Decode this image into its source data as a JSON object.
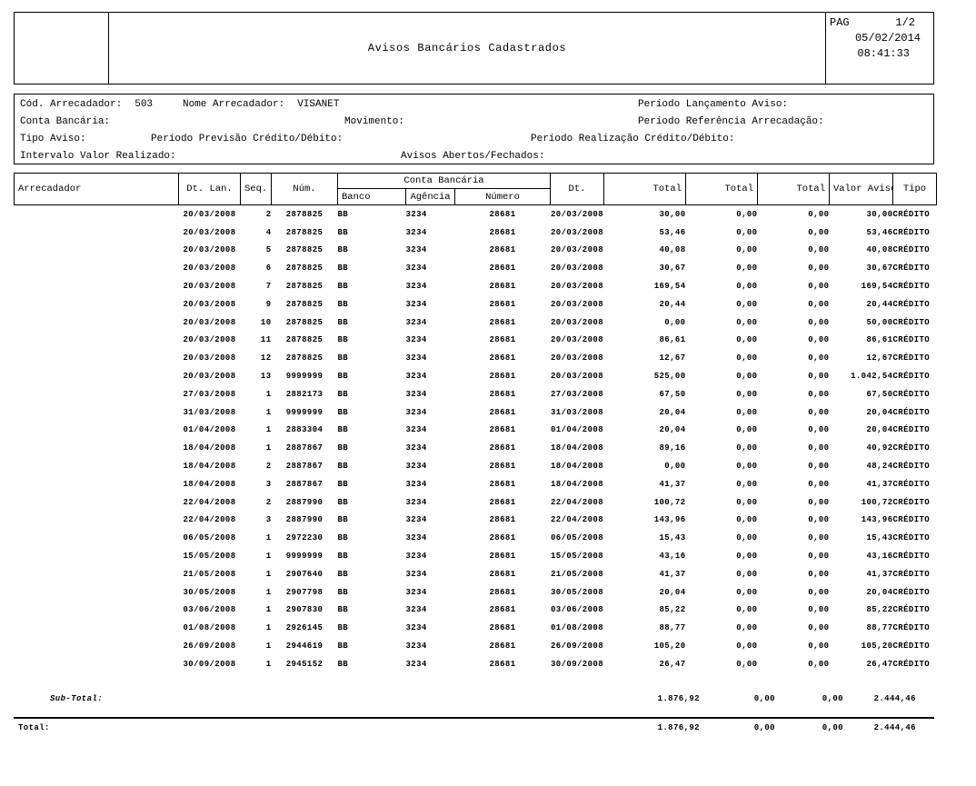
{
  "report": {
    "title": "Avisos Bancários Cadastrados",
    "pag_label": "PAG",
    "page_number": "1/2",
    "date": "05/02/2014",
    "time": "08:41:33"
  },
  "filters": {
    "cod_arrecadador": {
      "label": "Cód. Arrecadador:",
      "value": "503"
    },
    "nome_arrecadador": {
      "label": "Nome Arrecadador:",
      "value": "VISANET"
    },
    "periodo_lancamento": {
      "label": "Período Lançamento Aviso:",
      "value": ""
    },
    "conta_bancaria": {
      "label": "Conta Bancária:",
      "value": ""
    },
    "movimento": {
      "label": "Movimento:",
      "value": ""
    },
    "periodo_referencia": {
      "label": "Período Referência Arrecadação:",
      "value": ""
    },
    "tipo_aviso": {
      "label": "Tipo Aviso:",
      "value": ""
    },
    "periodo_previsao": {
      "label": "Período Previsão Crédito/Débito:",
      "value": ""
    },
    "periodo_realizacao": {
      "label": "Período Realização Crédito/Débito:",
      "value": ""
    },
    "intervalo_valor": {
      "label": "Intervalo Valor Realizado:",
      "value": ""
    },
    "avisos_abertos": {
      "label": "Avisos Abertos/Fechados:",
      "value": ""
    }
  },
  "table": {
    "headers": {
      "arrecadador": "Arrecadador",
      "dt_lan": "Dt. Lan.",
      "seq": "Seq.",
      "num": "Núm.",
      "conta_bancaria_group": "Conta Bancária",
      "banco": "Banco",
      "agencia": "Agência",
      "numero": "Número",
      "dt": "Dt.",
      "total1": "Total",
      "total2": "Total",
      "total3": "Total",
      "valor_aviso": "Valor Aviso",
      "tipo": "Tipo"
    },
    "field_names": [
      "dt-lan",
      "seq",
      "num",
      "banco",
      "agencia",
      "numero",
      "dt",
      "total-1",
      "total-2",
      "total-3",
      "valor-aviso",
      "tipo"
    ],
    "rows": [
      [
        "20/03/2008",
        "2",
        "2878825",
        "BB",
        "3234",
        "28681",
        "20/03/2008",
        "30,00",
        "0,00",
        "0,00",
        "30,00",
        "CRÉDITO"
      ],
      [
        "20/03/2008",
        "4",
        "2878825",
        "BB",
        "3234",
        "28681",
        "20/03/2008",
        "53,46",
        "0,00",
        "0,00",
        "53,46",
        "CRÉDITO"
      ],
      [
        "20/03/2008",
        "5",
        "2878825",
        "BB",
        "3234",
        "28681",
        "20/03/2008",
        "40,08",
        "0,00",
        "0,00",
        "40,08",
        "CRÉDITO"
      ],
      [
        "20/03/2008",
        "6",
        "2878825",
        "BB",
        "3234",
        "28681",
        "20/03/2008",
        "30,67",
        "0,00",
        "0,00",
        "30,67",
        "CRÉDITO"
      ],
      [
        "20/03/2008",
        "7",
        "2878825",
        "BB",
        "3234",
        "28681",
        "20/03/2008",
        "169,54",
        "0,00",
        "0,00",
        "169,54",
        "CRÉDITO"
      ],
      [
        "20/03/2008",
        "9",
        "2878825",
        "BB",
        "3234",
        "28681",
        "20/03/2008",
        "20,44",
        "0,00",
        "0,00",
        "20,44",
        "CRÉDITO"
      ],
      [
        "20/03/2008",
        "10",
        "2878825",
        "BB",
        "3234",
        "28681",
        "20/03/2008",
        "0,00",
        "0,00",
        "0,00",
        "50,00",
        "CRÉDITO"
      ],
      [
        "20/03/2008",
        "11",
        "2878825",
        "BB",
        "3234",
        "28681",
        "20/03/2008",
        "86,61",
        "0,00",
        "0,00",
        "86,61",
        "CRÉDITO"
      ],
      [
        "20/03/2008",
        "12",
        "2878825",
        "BB",
        "3234",
        "28681",
        "20/03/2008",
        "12,67",
        "0,00",
        "0,00",
        "12,67",
        "CRÉDITO"
      ],
      [
        "20/03/2008",
        "13",
        "9999999",
        "BB",
        "3234",
        "28681",
        "20/03/2008",
        "525,00",
        "0,00",
        "0,00",
        "1.042,54",
        "CRÉDITO"
      ],
      [
        "27/03/2008",
        "1",
        "2882173",
        "BB",
        "3234",
        "28681",
        "27/03/2008",
        "67,50",
        "0,00",
        "0,00",
        "67,50",
        "CRÉDITO"
      ],
      [
        "31/03/2008",
        "1",
        "9999999",
        "BB",
        "3234",
        "28681",
        "31/03/2008",
        "20,04",
        "0,00",
        "0,00",
        "20,04",
        "CRÉDITO"
      ],
      [
        "01/04/2008",
        "1",
        "2883304",
        "BB",
        "3234",
        "28681",
        "01/04/2008",
        "20,04",
        "0,00",
        "0,00",
        "20,04",
        "CRÉDITO"
      ],
      [
        "18/04/2008",
        "1",
        "2887867",
        "BB",
        "3234",
        "28681",
        "18/04/2008",
        "89,16",
        "0,00",
        "0,00",
        "40,92",
        "CRÉDITO"
      ],
      [
        "18/04/2008",
        "2",
        "2887867",
        "BB",
        "3234",
        "28681",
        "18/04/2008",
        "0,00",
        "0,00",
        "0,00",
        "48,24",
        "CRÉDITO"
      ],
      [
        "18/04/2008",
        "3",
        "2887867",
        "BB",
        "3234",
        "28681",
        "18/04/2008",
        "41,37",
        "0,00",
        "0,00",
        "41,37",
        "CRÉDITO"
      ],
      [
        "22/04/2008",
        "2",
        "2887990",
        "BB",
        "3234",
        "28681",
        "22/04/2008",
        "100,72",
        "0,00",
        "0,00",
        "100,72",
        "CRÉDITO"
      ],
      [
        "22/04/2008",
        "3",
        "2887990",
        "BB",
        "3234",
        "28681",
        "22/04/2008",
        "143,96",
        "0,00",
        "0,00",
        "143,96",
        "CRÉDITO"
      ],
      [
        "06/05/2008",
        "1",
        "2972230",
        "BB",
        "3234",
        "28681",
        "06/05/2008",
        "15,43",
        "0,00",
        "0,00",
        "15,43",
        "CRÉDITO"
      ],
      [
        "15/05/2008",
        "1",
        "9999999",
        "BB",
        "3234",
        "28681",
        "15/05/2008",
        "43,16",
        "0,00",
        "0,00",
        "43,16",
        "CRÉDITO"
      ],
      [
        "21/05/2008",
        "1",
        "2907640",
        "BB",
        "3234",
        "28681",
        "21/05/2008",
        "41,37",
        "0,00",
        "0,00",
        "41,37",
        "CRÉDITO"
      ],
      [
        "30/05/2008",
        "1",
        "2907798",
        "BB",
        "3234",
        "28681",
        "30/05/2008",
        "20,04",
        "0,00",
        "0,00",
        "20,04",
        "CRÉDITO"
      ],
      [
        "03/06/2008",
        "1",
        "2907830",
        "BB",
        "3234",
        "28681",
        "03/06/2008",
        "85,22",
        "0,00",
        "0,00",
        "85,22",
        "CRÉDITO"
      ],
      [
        "01/08/2008",
        "1",
        "2926145",
        "BB",
        "3234",
        "28681",
        "01/08/2008",
        "88,77",
        "0,00",
        "0,00",
        "88,77",
        "CRÉDITO"
      ],
      [
        "26/09/2008",
        "1",
        "2944619",
        "BB",
        "3234",
        "28681",
        "26/09/2008",
        "105,20",
        "0,00",
        "0,00",
        "105,20",
        "CRÉDITO"
      ],
      [
        "30/09/2008",
        "1",
        "2945152",
        "BB",
        "3234",
        "28681",
        "30/09/2008",
        "26,47",
        "0,00",
        "0,00",
        "26,47",
        "CRÉDITO"
      ]
    ]
  },
  "totals": {
    "subtotal_label": "Sub-Total:",
    "subtotal": [
      "1.876,92",
      "0,00",
      "0,00",
      "2.444,46"
    ],
    "total_label": "Total:",
    "total": [
      "1.876,92",
      "0,00",
      "0,00",
      "2.444,46"
    ]
  }
}
